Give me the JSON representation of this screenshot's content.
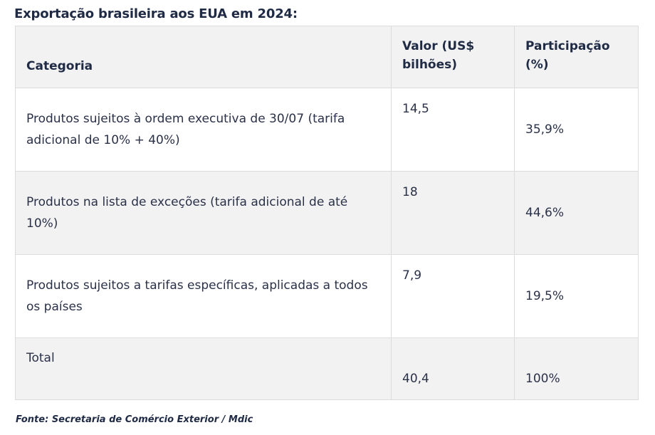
{
  "title": "Exportação brasileira aos EUA em 2024:",
  "table": {
    "headers": {
      "category": "Categoria",
      "value": "Valor (US$ bilhões)",
      "share": "Participação (%)"
    },
    "rows": [
      {
        "category": "Produtos sujeitos à ordem executiva de 30/07 (tarifa adicional de 10% + 40%)",
        "value": "14,5",
        "share": "35,9%"
      },
      {
        "category": "Produtos na lista de exceções (tarifa adicional de até 10%)",
        "value": "18",
        "share": "44,6%"
      },
      {
        "category": "Produtos sujeitos a tarifas específicas, aplicadas a todos os países",
        "value": "7,9",
        "share": "19,5%"
      }
    ],
    "total": {
      "category": "Total",
      "value": "40,4",
      "share": "100%"
    }
  },
  "source": "Fonte: Secretaria de Comércio Exterior / Mdic",
  "colors": {
    "text": "#1f2a44",
    "shaded_row": "#f2f2f2",
    "border": "#dcdcdc"
  }
}
